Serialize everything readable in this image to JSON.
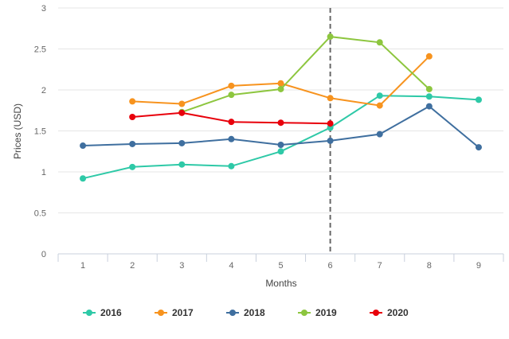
{
  "chart_data": {
    "type": "line",
    "title": "",
    "xlabel": "Months",
    "ylabel": "Prices (USD)",
    "x": [
      1,
      2,
      3,
      4,
      5,
      6,
      7,
      8,
      9
    ],
    "xlim": [
      0.5,
      9.5
    ],
    "ylim": [
      0,
      3
    ],
    "yticks": [
      0,
      0.5,
      1,
      1.5,
      2,
      2.5,
      3
    ],
    "grid": "horizontal",
    "legend_position": "bottom",
    "reference_line": {
      "x": 6,
      "style": "dashed",
      "color": "#666666"
    },
    "series": [
      {
        "name": "2016",
        "color": "#2ec9a7",
        "x": [
          1,
          2,
          3,
          4,
          5,
          6,
          7,
          8,
          9
        ],
        "values": [
          0.92,
          1.06,
          1.09,
          1.07,
          1.25,
          1.54,
          1.93,
          1.92,
          1.88
        ]
      },
      {
        "name": "2017",
        "color": "#f7931e",
        "x": [
          2,
          3,
          4,
          5,
          6,
          7,
          8
        ],
        "values": [
          1.86,
          1.83,
          2.05,
          2.08,
          1.9,
          1.81,
          2.41
        ]
      },
      {
        "name": "2018",
        "color": "#3f6f9f",
        "x": [
          1,
          2,
          3,
          4,
          5,
          6,
          7,
          8,
          9
        ],
        "values": [
          1.32,
          1.34,
          1.35,
          1.4,
          1.33,
          1.38,
          1.46,
          1.8,
          1.3
        ]
      },
      {
        "name": "2019",
        "color": "#8dc63f",
        "x": [
          3,
          4,
          5,
          6,
          7,
          8
        ],
        "values": [
          1.73,
          1.94,
          2.01,
          2.65,
          2.58,
          2.01
        ]
      },
      {
        "name": "2020",
        "color": "#e8000b",
        "x": [
          2,
          3,
          4,
          5,
          6
        ],
        "values": [
          1.67,
          1.72,
          1.61,
          1.6,
          1.59
        ]
      }
    ]
  }
}
